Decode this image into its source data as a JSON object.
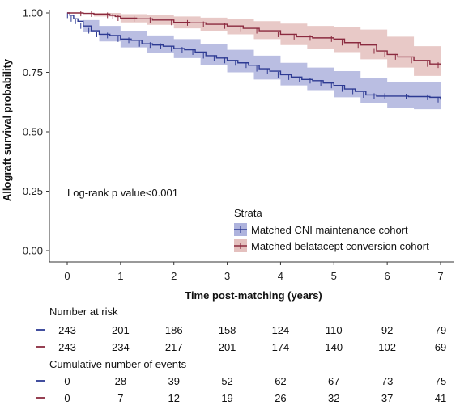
{
  "chart_data": {
    "type": "line",
    "subtype": "kaplan-meier",
    "title": "",
    "xlabel": "Time post-matching (years)",
    "ylabel": "Allograft survival probability",
    "xlim": [
      0,
      7
    ],
    "ylim": [
      0,
      1
    ],
    "x_ticks": [
      "0",
      "1",
      "2",
      "3",
      "4",
      "5",
      "6",
      "7"
    ],
    "y_ticks": [
      "0.00",
      "0.25",
      "0.50",
      "0.75",
      "1.00"
    ],
    "grid": false,
    "legend": {
      "title": "Strata",
      "placement": "center-right",
      "entries": [
        "Matched CNI maintenance cohort",
        "Matched belatacept conversion cohort"
      ]
    },
    "annotation": "Log-rank p value<0.001",
    "series": [
      {
        "name": "Matched CNI maintenance cohort",
        "color": "#2d3a93",
        "band_color": "#8c93cf",
        "points": [
          [
            0,
            1.0
          ],
          [
            0.05,
            0.99
          ],
          [
            0.12,
            0.975
          ],
          [
            0.2,
            0.965
          ],
          [
            0.3,
            0.945
          ],
          [
            0.45,
            0.925
          ],
          [
            0.6,
            0.91
          ],
          [
            0.8,
            0.905
          ],
          [
            1.0,
            0.89
          ],
          [
            1.2,
            0.885
          ],
          [
            1.4,
            0.87
          ],
          [
            1.6,
            0.865
          ],
          [
            1.8,
            0.86
          ],
          [
            2.0,
            0.85
          ],
          [
            2.2,
            0.845
          ],
          [
            2.4,
            0.835
          ],
          [
            2.6,
            0.82
          ],
          [
            2.8,
            0.81
          ],
          [
            3.0,
            0.8
          ],
          [
            3.2,
            0.79
          ],
          [
            3.4,
            0.78
          ],
          [
            3.6,
            0.765
          ],
          [
            3.8,
            0.755
          ],
          [
            4.0,
            0.74
          ],
          [
            4.2,
            0.73
          ],
          [
            4.4,
            0.72
          ],
          [
            4.6,
            0.715
          ],
          [
            4.8,
            0.705
          ],
          [
            5.0,
            0.695
          ],
          [
            5.2,
            0.68
          ],
          [
            5.4,
            0.67
          ],
          [
            5.6,
            0.655
          ],
          [
            5.8,
            0.65
          ],
          [
            6.0,
            0.65
          ],
          [
            6.4,
            0.648
          ],
          [
            6.8,
            0.645
          ],
          [
            7.0,
            0.635
          ]
        ],
        "ci_lower": [
          [
            0,
            1.0
          ],
          [
            0.3,
            0.92
          ],
          [
            0.6,
            0.88
          ],
          [
            1.0,
            0.855
          ],
          [
            1.5,
            0.83
          ],
          [
            2.0,
            0.81
          ],
          [
            2.5,
            0.78
          ],
          [
            3.0,
            0.75
          ],
          [
            3.5,
            0.72
          ],
          [
            4.0,
            0.695
          ],
          [
            4.5,
            0.675
          ],
          [
            5.0,
            0.645
          ],
          [
            5.5,
            0.62
          ],
          [
            6.0,
            0.6
          ],
          [
            6.5,
            0.595
          ],
          [
            7.0,
            0.585
          ]
        ],
        "ci_upper": [
          [
            0,
            1.0
          ],
          [
            0.3,
            0.97
          ],
          [
            0.6,
            0.945
          ],
          [
            1.0,
            0.925
          ],
          [
            1.5,
            0.905
          ],
          [
            2.0,
            0.89
          ],
          [
            2.5,
            0.87
          ],
          [
            3.0,
            0.845
          ],
          [
            3.5,
            0.82
          ],
          [
            4.0,
            0.79
          ],
          [
            4.5,
            0.77
          ],
          [
            5.0,
            0.755
          ],
          [
            5.5,
            0.725
          ],
          [
            6.0,
            0.71
          ],
          [
            6.5,
            0.71
          ],
          [
            7.0,
            0.7
          ]
        ]
      },
      {
        "name": "Matched belatacept conversion cohort",
        "color": "#8b2a3f",
        "band_color": "#d9a5a2",
        "points": [
          [
            0,
            1.0
          ],
          [
            0.3,
            0.998
          ],
          [
            0.5,
            0.995
          ],
          [
            0.8,
            0.99
          ],
          [
            0.9,
            0.985
          ],
          [
            1.0,
            0.978
          ],
          [
            1.3,
            0.975
          ],
          [
            1.6,
            0.97
          ],
          [
            2.0,
            0.96
          ],
          [
            2.3,
            0.958
          ],
          [
            2.6,
            0.952
          ],
          [
            3.0,
            0.945
          ],
          [
            3.3,
            0.935
          ],
          [
            3.6,
            0.925
          ],
          [
            4.0,
            0.91
          ],
          [
            4.3,
            0.9
          ],
          [
            4.6,
            0.895
          ],
          [
            5.0,
            0.89
          ],
          [
            5.2,
            0.875
          ],
          [
            5.5,
            0.865
          ],
          [
            5.8,
            0.84
          ],
          [
            6.0,
            0.825
          ],
          [
            6.2,
            0.815
          ],
          [
            6.5,
            0.8
          ],
          [
            6.8,
            0.785
          ],
          [
            7.0,
            0.78
          ]
        ],
        "ci_lower": [
          [
            0,
            1.0
          ],
          [
            0.5,
            0.985
          ],
          [
            1.0,
            0.96
          ],
          [
            1.5,
            0.95
          ],
          [
            2.0,
            0.935
          ],
          [
            2.5,
            0.925
          ],
          [
            3.0,
            0.91
          ],
          [
            3.5,
            0.89
          ],
          [
            4.0,
            0.865
          ],
          [
            4.5,
            0.85
          ],
          [
            5.0,
            0.835
          ],
          [
            5.5,
            0.805
          ],
          [
            6.0,
            0.77
          ],
          [
            6.5,
            0.735
          ],
          [
            7.0,
            0.72
          ]
        ],
        "ci_upper": [
          [
            0,
            1.0
          ],
          [
            0.5,
            1.0
          ],
          [
            1.0,
            0.995
          ],
          [
            1.5,
            0.99
          ],
          [
            2.0,
            0.985
          ],
          [
            2.5,
            0.98
          ],
          [
            3.0,
            0.975
          ],
          [
            3.5,
            0.965
          ],
          [
            4.0,
            0.955
          ],
          [
            4.5,
            0.945
          ],
          [
            5.0,
            0.94
          ],
          [
            5.5,
            0.93
          ],
          [
            6.0,
            0.9
          ],
          [
            6.5,
            0.86
          ],
          [
            7.0,
            0.84
          ]
        ]
      }
    ],
    "risk_table": {
      "title": "Number at risk",
      "rows": [
        {
          "series": "Matched CNI maintenance cohort",
          "color": "#2d3a93",
          "values": [
            "243",
            "201",
            "186",
            "158",
            "124",
            "110",
            "92",
            "79"
          ]
        },
        {
          "series": "Matched belatacept conversion cohort",
          "color": "#8b2a3f",
          "values": [
            "243",
            "234",
            "217",
            "201",
            "174",
            "140",
            "102",
            "69"
          ]
        }
      ]
    },
    "events_table": {
      "title": "Cumulative number of events",
      "rows": [
        {
          "series": "Matched CNI maintenance cohort",
          "color": "#2d3a93",
          "values": [
            "0",
            "28",
            "39",
            "52",
            "62",
            "67",
            "73",
            "75"
          ]
        },
        {
          "series": "Matched belatacept conversion cohort",
          "color": "#8b2a3f",
          "values": [
            "0",
            "7",
            "12",
            "19",
            "26",
            "32",
            "37",
            "41"
          ]
        }
      ]
    }
  }
}
